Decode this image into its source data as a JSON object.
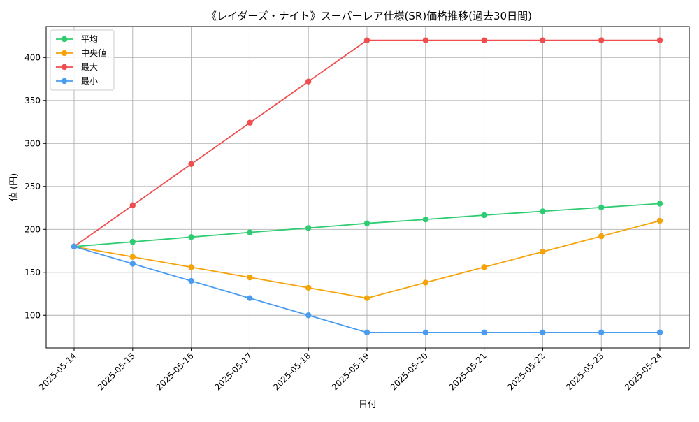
{
  "chart_data": {
    "type": "line",
    "title": "《レイダーズ・ナイト》スーパーレア仕様(SR)価格推移(過去30日間)",
    "xlabel": "日付",
    "ylabel": "値 (円)",
    "categories": [
      "2025-05-14",
      "2025-05-15",
      "2025-05-16",
      "2025-05-17",
      "2025-05-18",
      "2025-05-19",
      "2025-05-20",
      "2025-05-21",
      "2025-05-22",
      "2025-05-23",
      "2025-05-24"
    ],
    "ylim": [
      62,
      436
    ],
    "yticks": [
      100,
      150,
      200,
      250,
      300,
      350,
      400
    ],
    "grid": true,
    "legend_position": "top-left",
    "series": [
      {
        "name": "平均",
        "color": "#2ecc71",
        "values": [
          180,
          185.5,
          191,
          196.5,
          201.5,
          207,
          211.5,
          216.5,
          221,
          225.5,
          230
        ]
      },
      {
        "name": "中央値",
        "color": "#f5a30a",
        "values": [
          180,
          168,
          156,
          144,
          132,
          120,
          138,
          156,
          174,
          192,
          210
        ]
      },
      {
        "name": "最大",
        "color": "#f04e4e",
        "values": [
          180,
          228,
          276,
          324,
          372,
          420,
          420,
          420,
          420,
          420,
          420
        ]
      },
      {
        "name": "最小",
        "color": "#4a9cf0",
        "values": [
          180,
          160,
          140,
          120,
          100,
          80,
          80,
          80,
          80,
          80,
          80
        ]
      }
    ]
  }
}
